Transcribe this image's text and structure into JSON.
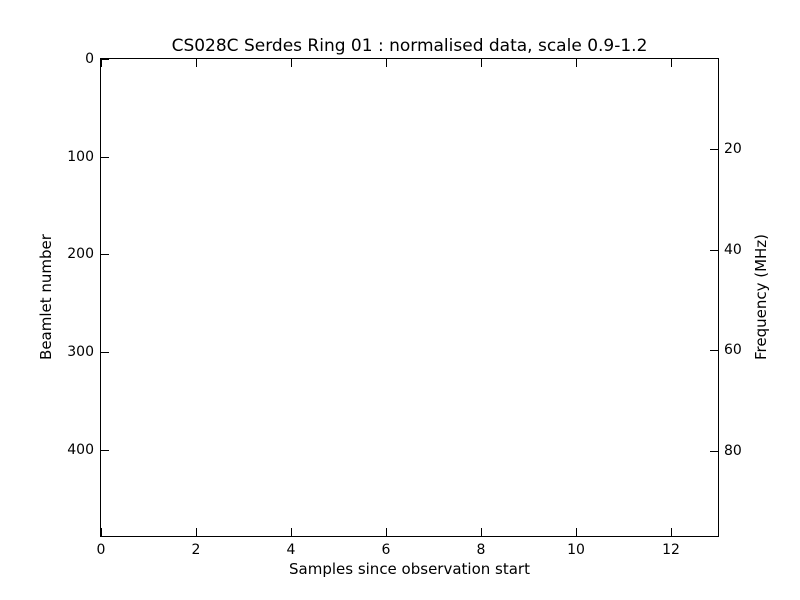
{
  "colors": {
    "background": "#ffffff",
    "axes_and_text": "#000000"
  },
  "chart_data": {
    "type": "heatmap",
    "title": "CS028C Serdes Ring 01 : normalised data, scale 0.9-1.2",
    "xlabel": "Samples since observation start",
    "ylabel_left": "Beamlet number",
    "ylabel_right": "Frequency (MHz)",
    "x_ticks": [
      0,
      2,
      4,
      6,
      8,
      10,
      12
    ],
    "xlim": [
      0,
      13
    ],
    "y_ticks_left": [
      0,
      100,
      200,
      300,
      400
    ],
    "ylim_left": [
      0,
      488
    ],
    "y_left_direction": "inverted, 0 at top",
    "y_ticks_right": [
      20,
      40,
      60,
      80
    ],
    "ylim_right": [
      2,
      97
    ],
    "grid": false,
    "legend": null,
    "values": [],
    "plot_area_content": "blank (all white, no visible data)"
  }
}
